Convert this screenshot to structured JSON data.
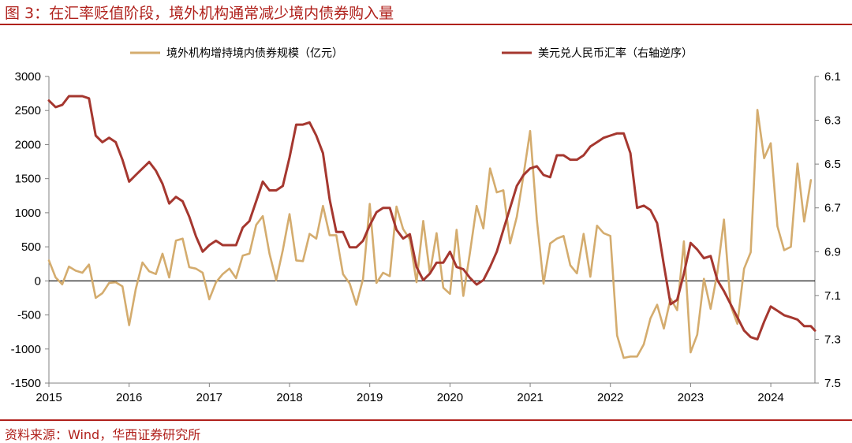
{
  "title": "图 3：在汇率贬值阶段，境外机构通常减少境内债券购入量",
  "source": "资料来源：Wind，华西证券研究所",
  "chart_data": {
    "type": "line",
    "colors": {
      "gold": "#d4ac6e",
      "red": "#a5372f"
    },
    "legend": [
      {
        "name": "境外机构增持境内债券规模（亿元）",
        "color": "#d4ac6e"
      },
      {
        "name": "美元兑人民币汇率（右轴逆序）",
        "color": "#a5372f"
      }
    ],
    "legend_position": "top",
    "x_ticks": [
      "2015",
      "2016",
      "2017",
      "2018",
      "2019",
      "2020",
      "2021",
      "2022",
      "2023",
      "2024"
    ],
    "x_range": [
      2015.0,
      2024.55
    ],
    "y_left": {
      "ticks": [
        "3000",
        "2500",
        "2000",
        "1500",
        "1000",
        "500",
        "0",
        "-500",
        "-1000",
        "-1500"
      ],
      "range": [
        -1500,
        3000
      ]
    },
    "y_right": {
      "ticks": [
        "6.1",
        "6.3",
        "6.5",
        "6.7",
        "6.9",
        "7.1",
        "7.3",
        "7.5"
      ],
      "range": [
        6.1,
        7.5
      ],
      "inverted": true
    },
    "series": [
      {
        "name": "境外机构增持境内债券规模（亿元）",
        "axis": "left",
        "start_year": 2015.0,
        "step": 0.08333,
        "values": [
          300,
          50,
          -50,
          210,
          150,
          120,
          240,
          -250,
          -180,
          -30,
          -20,
          -80,
          -650,
          -120,
          270,
          140,
          100,
          400,
          50,
          590,
          620,
          200,
          180,
          120,
          -270,
          -20,
          100,
          180,
          40,
          370,
          400,
          820,
          950,
          400,
          10,
          450,
          980,
          300,
          290,
          690,
          620,
          1100,
          670,
          670,
          100,
          -40,
          -350,
          30,
          1130,
          -30,
          120,
          70,
          1090,
          760,
          610,
          -20,
          880,
          110,
          700,
          -100,
          -190,
          750,
          -220,
          420,
          1100,
          770,
          1650,
          1300,
          1330,
          550,
          940,
          1550,
          2200,
          900,
          -40,
          550,
          620,
          660,
          230,
          110,
          690,
          60,
          810,
          700,
          660,
          -800,
          -1130,
          -1110,
          -1110,
          -930,
          -550,
          -350,
          -700,
          -260,
          -430,
          580,
          -1050,
          -790,
          30,
          -410,
          120,
          900,
          -360,
          -630,
          180,
          420,
          2510,
          1800,
          2020,
          800,
          450,
          500,
          1720,
          870,
          1480
        ]
      },
      {
        "name": "美元兑人民币汇率（右轴逆序）",
        "axis": "right",
        "start_year": 2015.0,
        "step": 0.08333,
        "values": [
          6.21,
          6.24,
          6.23,
          6.19,
          6.19,
          6.19,
          6.2,
          6.37,
          6.4,
          6.38,
          6.4,
          6.48,
          6.58,
          6.55,
          6.52,
          6.49,
          6.53,
          6.59,
          6.68,
          6.65,
          6.67,
          6.74,
          6.83,
          6.9,
          6.87,
          6.85,
          6.87,
          6.87,
          6.87,
          6.79,
          6.76,
          6.67,
          6.58,
          6.62,
          6.62,
          6.6,
          6.47,
          6.32,
          6.32,
          6.31,
          6.37,
          6.45,
          6.66,
          6.81,
          6.81,
          6.88,
          6.88,
          6.85,
          6.78,
          6.72,
          6.7,
          6.7,
          6.8,
          6.84,
          6.82,
          6.97,
          7.03,
          7.0,
          6.95,
          6.95,
          6.9,
          6.97,
          6.98,
          7.02,
          7.05,
          7.03,
          6.97,
          6.9,
          6.8,
          6.7,
          6.6,
          6.55,
          6.52,
          6.51,
          6.55,
          6.56,
          6.46,
          6.46,
          6.48,
          6.48,
          6.46,
          6.42,
          6.4,
          6.38,
          6.37,
          6.36,
          6.36,
          6.45,
          6.7,
          6.69,
          6.71,
          6.77,
          6.96,
          7.14,
          7.12,
          7.0,
          6.86,
          6.89,
          6.93,
          6.92,
          7.03,
          7.08,
          7.14,
          7.2,
          7.26,
          7.29,
          7.3,
          7.22,
          7.15,
          7.17,
          7.19,
          7.2,
          7.21,
          7.24,
          7.24,
          7.26,
          7.26
        ]
      }
    ]
  }
}
